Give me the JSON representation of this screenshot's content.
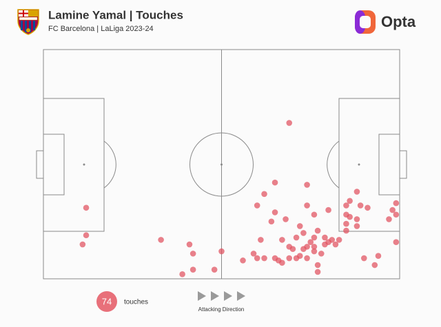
{
  "title": "Lamine Yamal | Touches",
  "subtitle": "FC Barcelona | LaLiga 2023-24",
  "brand": "Opta",
  "count": 74,
  "count_label": "touches",
  "direction_label": "Attacking Direction",
  "chart_data": {
    "type": "scatter",
    "color": "#e0505e",
    "xlim": [
      0,
      100
    ],
    "ylim": [
      0,
      100
    ],
    "x": [
      69,
      65,
      62,
      74,
      60,
      74,
      76,
      88,
      89,
      86,
      80,
      85,
      86,
      88,
      85,
      88,
      91,
      97,
      99,
      98,
      99,
      12,
      12,
      11,
      33,
      65,
      68,
      64,
      72,
      73,
      77,
      76,
      67,
      61,
      62,
      41,
      42,
      50,
      39,
      42,
      48,
      56,
      59,
      60,
      66,
      67,
      69,
      72,
      74,
      77,
      77,
      73,
      74,
      76,
      79,
      80,
      78,
      81,
      83,
      82,
      75,
      76,
      70,
      90,
      94,
      93,
      99,
      69,
      85,
      71,
      71,
      85,
      79,
      65
    ],
    "values": [
      68,
      42,
      37,
      41,
      32,
      32,
      28,
      38,
      32,
      34,
      30,
      28,
      27,
      26,
      24,
      23,
      31,
      26,
      28,
      30,
      33,
      31,
      19,
      15,
      17,
      29,
      26,
      25,
      23,
      20,
      21,
      18,
      17,
      17,
      9,
      15,
      11,
      12,
      2,
      4,
      4,
      8,
      11,
      9,
      8,
      7,
      9,
      10,
      9,
      6,
      3,
      13,
      14,
      14,
      15,
      16,
      11,
      17,
      17,
      15,
      16,
      12,
      13,
      9,
      10,
      6,
      16,
      14,
      21,
      9,
      18,
      32,
      18,
      9
    ]
  }
}
